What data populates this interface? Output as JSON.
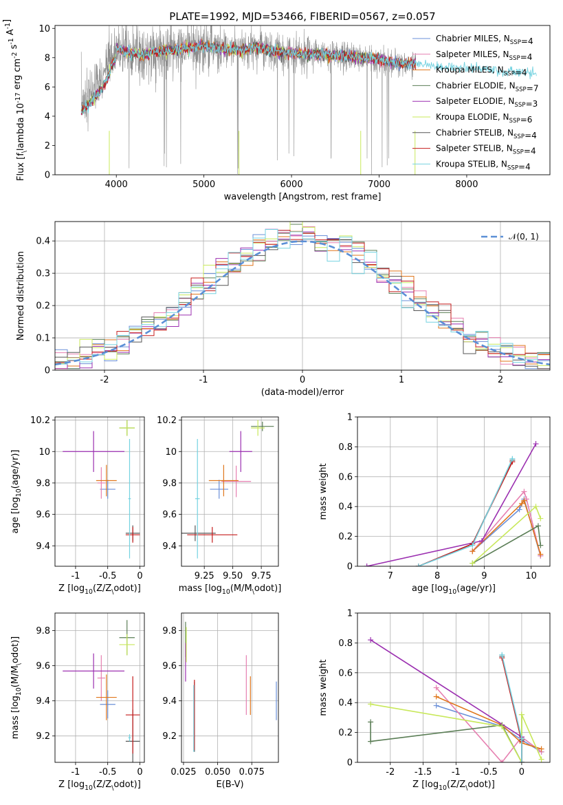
{
  "figure": {
    "title": "PLATE=1992, MJD=53466, FIBERID=0567, z=0.057",
    "colors": {
      "Chabrier MILES": "#6a8fd8",
      "Salpeter MILES": "#e67fb0",
      "Kroupa MILES": "#e0761b",
      "Chabrier ELODIE": "#5a7d55",
      "Salpeter ELODIE": "#9b2fb0",
      "Kroupa ELODIE": "#c8e85a",
      "Chabrier STELIB": "#555555",
      "Salpeter STELIB": "#c51b1b",
      "Kroupa STELIB": "#74d2e0",
      "data": "#8c8c8c",
      "gauss": "#5b8fd6"
    }
  },
  "chart_data": [
    {
      "id": "spectrum",
      "type": "line",
      "xlabel": "wavelength [Angstrom, rest frame]",
      "ylabel": "Flux [f$_\\lambda 10^{-17}$ erg cm$^{-2}$ s$^{-1}$ A$^{-1}$]",
      "xlim": [
        3300,
        8950
      ],
      "ylim": [
        0,
        10.2
      ],
      "xticks": [
        4000,
        5000,
        6000,
        7000,
        8000
      ],
      "yticks": [
        0,
        2,
        4,
        6,
        8,
        10
      ],
      "grid": false,
      "legend_position": "upper right",
      "legend": [
        "Chabrier MILES, N$_{SSP}$=4",
        "Salpeter MILES, N$_{SSP}$=4",
        "Kroupa MILES, N$_{SSP}$=4",
        "Chabrier ELODIE, N$_{SSP}$=7",
        "Salpeter ELODIE, N$_{SSP}$=3",
        "Kroupa ELODIE, N$_{SSP}$=6",
        "Chabrier STELIB, N$_{SSP}$=4",
        "Salpeter STELIB, N$_{SSP}$=4",
        "Kroupa STELIB, N$_{SSP}$=4"
      ],
      "continuum": {
        "x": [
          3600,
          3650,
          3700,
          3750,
          3800,
          3850,
          3900,
          3950,
          4000,
          4100,
          4200,
          4300,
          4400,
          4600,
          4800,
          5000,
          5200,
          5400,
          5600,
          5800,
          6000,
          6200,
          6400,
          6600,
          6800,
          7000,
          7200,
          7400,
          7600,
          7800,
          8000,
          8200,
          8400,
          8600,
          8800
        ],
        "y": [
          4.9,
          5.2,
          5.5,
          5.9,
          6.2,
          6.6,
          7.2,
          8.1,
          8.6,
          8.4,
          8.3,
          8.2,
          8.4,
          8.5,
          8.6,
          8.8,
          8.6,
          8.5,
          8.7,
          8.4,
          8.3,
          8.2,
          8.2,
          8.1,
          8.0,
          7.9,
          7.6,
          7.6,
          7.5,
          7.4,
          7.3,
          7.2,
          7.1,
          7.0,
          6.9
        ]
      }
    },
    {
      "id": "residuals",
      "type": "line",
      "xlabel": "(data-model)/error",
      "ylabel": "Normed distribution",
      "xlim": [
        -2.5,
        2.5
      ],
      "ylim": [
        0,
        0.46
      ],
      "xticks": [
        -2,
        -1,
        0,
        1,
        2
      ],
      "yticks": [
        0.0,
        0.1,
        0.2,
        0.3,
        0.4
      ],
      "grid": true,
      "legend_position": "upper right",
      "legend": [
        "$\\mathcal{N}(0,1)$"
      ]
    },
    {
      "id": "age_vs_Z",
      "type": "scatter",
      "xlabel": "Z [log$_{10}(Z/Z_\\odot)$]",
      "ylabel": "age  [log$_{10}(age/yr)$]",
      "xlim": [
        -1.32,
        0.07
      ],
      "ylim": [
        9.27,
        10.22
      ],
      "xticks": [
        -1.0,
        -0.5,
        0.0
      ],
      "yticks": [
        9.4,
        9.6,
        9.8,
        10.0,
        10.2
      ],
      "grid": true,
      "points": [
        {
          "model": "Chabrier MILES",
          "x": -0.5,
          "xerr": 0.12,
          "y": 9.76,
          "yerr": 0.06
        },
        {
          "model": "Salpeter MILES",
          "x": -0.6,
          "xerr": 0.06,
          "y": 9.8,
          "yerr": 0.1
        },
        {
          "model": "Kroupa MILES",
          "x": -0.52,
          "xerr": 0.16,
          "y": 9.815,
          "yerr": 0.1
        },
        {
          "model": "Chabrier ELODIE",
          "x": -0.2,
          "xerr": 0.12,
          "y": 10.15,
          "yerr": 0.05
        },
        {
          "model": "Salpeter ELODIE",
          "x": -0.72,
          "xerr": 0.48,
          "y": 10.0,
          "yerr": 0.13
        },
        {
          "model": "Kroupa ELODIE",
          "x": -0.2,
          "xerr": 0.12,
          "y": 10.15,
          "yerr": 0.05
        },
        {
          "model": "Chabrier STELIB",
          "x": -0.11,
          "xerr": 0.11,
          "y": 9.48,
          "yerr": 0.05
        },
        {
          "model": "Salpeter STELIB",
          "x": -0.11,
          "xerr": 0.11,
          "y": 9.47,
          "yerr": 0.05
        },
        {
          "model": "Kroupa STELIB",
          "x": -0.16,
          "xerr": 0.02,
          "y": 9.7,
          "yerr": 0.38
        }
      ]
    },
    {
      "id": "age_vs_mass",
      "type": "scatter",
      "xlabel": "mass [log$_{10}(M/M_\\odot)$]",
      "ylabel": "",
      "xlim": [
        9.05,
        9.9
      ],
      "ylim": [
        9.27,
        10.22
      ],
      "xticks": [
        9.25,
        9.5,
        9.75
      ],
      "xticklabels": [
        "9.25",
        "9.50",
        "9.75"
      ],
      "yticks": [
        9.4,
        9.6,
        9.8,
        10.0,
        10.2
      ],
      "grid": true,
      "points": [
        {
          "model": "Chabrier MILES",
          "x": 9.38,
          "xerr": 0.08,
          "y": 9.76,
          "yerr": 0.06
        },
        {
          "model": "Salpeter MILES",
          "x": 9.53,
          "xerr": 0.13,
          "y": 9.81,
          "yerr": 0.1
        },
        {
          "model": "Kroupa MILES",
          "x": 9.42,
          "xerr": 0.13,
          "y": 9.815,
          "yerr": 0.1
        },
        {
          "model": "Chabrier ELODIE",
          "x": 9.76,
          "xerr": 0.1,
          "y": 10.16,
          "yerr": 0.03
        },
        {
          "model": "Salpeter ELODIE",
          "x": 9.57,
          "xerr": 0.1,
          "y": 10.0,
          "yerr": 0.13
        },
        {
          "model": "Kroupa ELODIE",
          "x": 9.72,
          "xerr": 0.06,
          "y": 10.15,
          "yerr": 0.05
        },
        {
          "model": "Chabrier STELIB",
          "x": 9.17,
          "xerr": 0.18,
          "y": 9.48,
          "yerr": 0.05
        },
        {
          "model": "Salpeter STELIB",
          "x": 9.32,
          "xerr": 0.22,
          "y": 9.47,
          "yerr": 0.05
        },
        {
          "model": "Kroupa STELIB",
          "x": 9.19,
          "xerr": 0.02,
          "y": 9.7,
          "yerr": 0.38
        }
      ]
    },
    {
      "id": "weight_vs_age",
      "type": "line",
      "xlabel": "age  [log$_{10}(age/yr)$]",
      "ylabel": "mass weight",
      "xlim": [
        6.3,
        10.4
      ],
      "ylim": [
        0,
        1
      ],
      "xticks": [
        7,
        8,
        9,
        10
      ],
      "yticks": [
        0.0,
        0.2,
        0.4,
        0.6,
        0.8,
        1.0
      ],
      "grid": true,
      "series": [
        {
          "model": "Chabrier MILES",
          "x": [
            8.75,
            9.75,
            9.85,
            10.2
          ],
          "y": [
            0.1,
            0.38,
            0.45,
            0.07
          ]
        },
        {
          "model": "Salpeter MILES",
          "x": [
            8.75,
            9.85,
            9.9,
            10.2
          ],
          "y": [
            0.1,
            0.5,
            0.45,
            0.07
          ]
        },
        {
          "model": "Kroupa MILES",
          "x": [
            8.75,
            9.8,
            9.85,
            10.2
          ],
          "y": [
            0.1,
            0.42,
            0.44,
            0.08
          ]
        },
        {
          "model": "Chabrier ELODIE",
          "x": [
            8.75,
            10.15,
            10.2
          ],
          "y": [
            0.02,
            0.27,
            0.14
          ]
        },
        {
          "model": "Salpeter ELODIE",
          "x": [
            6.5,
            8.95,
            10.1
          ],
          "y": [
            0.0,
            0.17,
            0.82
          ]
        },
        {
          "model": "Kroupa ELODIE",
          "x": [
            8.75,
            10.1,
            10.2
          ],
          "y": [
            0.02,
            0.4,
            0.32
          ]
        },
        {
          "model": "Chabrier STELIB",
          "x": [
            7.6,
            8.75,
            9.6
          ],
          "y": [
            0.0,
            0.15,
            0.71
          ]
        },
        {
          "model": "Salpeter STELIB",
          "x": [
            7.6,
            8.75,
            9.6
          ],
          "y": [
            0.0,
            0.15,
            0.7
          ]
        },
        {
          "model": "Kroupa STELIB",
          "x": [
            7.6,
            8.75,
            9.6
          ],
          "y": [
            0.0,
            0.14,
            0.72
          ]
        }
      ]
    },
    {
      "id": "mass_vs_Z",
      "type": "scatter",
      "xlabel": "Z [log$_{10}(Z/Z_\\odot)$]",
      "ylabel": "mass [log$_{10}(M/M_\\odot)$]",
      "xlim": [
        -1.32,
        0.07
      ],
      "ylim": [
        9.05,
        9.9
      ],
      "xticks": [
        -1.0,
        -0.5,
        0.0
      ],
      "yticks": [
        9.2,
        9.4,
        9.6,
        9.8
      ],
      "grid": true,
      "points": [
        {
          "model": "Chabrier MILES",
          "x": -0.5,
          "xerr": 0.12,
          "y": 9.38,
          "yerr": 0.08
        },
        {
          "model": "Salpeter MILES",
          "x": -0.6,
          "xerr": 0.06,
          "y": 9.53,
          "yerr": 0.13
        },
        {
          "model": "Kroupa MILES",
          "x": -0.52,
          "xerr": 0.16,
          "y": 9.42,
          "yerr": 0.13
        },
        {
          "model": "Chabrier ELODIE",
          "x": -0.2,
          "xerr": 0.12,
          "y": 9.76,
          "yerr": 0.1
        },
        {
          "model": "Salpeter ELODIE",
          "x": -0.72,
          "xerr": 0.48,
          "y": 9.57,
          "yerr": 0.1
        },
        {
          "model": "Kroupa ELODIE",
          "x": -0.2,
          "xerr": 0.12,
          "y": 9.72,
          "yerr": 0.06
        },
        {
          "model": "Chabrier STELIB",
          "x": -0.11,
          "xerr": 0.11,
          "y": 9.17,
          "yerr": 0.18
        },
        {
          "model": "Salpeter STELIB",
          "x": -0.11,
          "xerr": 0.11,
          "y": 9.32,
          "yerr": 0.22
        },
        {
          "model": "Kroupa STELIB",
          "x": -0.16,
          "xerr": 0.02,
          "y": 9.19,
          "yerr": 0.02
        }
      ]
    },
    {
      "id": "mass_vs_EBV",
      "type": "scatter",
      "xlabel": "E(B-V)",
      "ylabel": "",
      "xlim": [
        0.0235,
        0.0945
      ],
      "ylim": [
        9.05,
        9.9
      ],
      "xticks": [
        0.025,
        0.05,
        0.075
      ],
      "xticklabels": [
        "0.025",
        "0.050",
        "0.075"
      ],
      "yticks": [
        9.2,
        9.4,
        9.6,
        9.8
      ],
      "grid": true,
      "points": [
        {
          "model": "Chabrier MILES",
          "x": 0.093,
          "xerr": 0,
          "y": 9.4,
          "yerr": 0.11
        },
        {
          "model": "Salpeter MILES",
          "x": 0.071,
          "xerr": 0,
          "y": 9.49,
          "yerr": 0.17
        },
        {
          "model": "Kroupa MILES",
          "x": 0.074,
          "xerr": 0,
          "y": 9.43,
          "yerr": 0.11
        },
        {
          "model": "Chabrier ELODIE",
          "x": 0.0265,
          "xerr": 0,
          "y": 9.75,
          "yerr": 0.1
        },
        {
          "model": "Salpeter ELODIE",
          "x": 0.0265,
          "xerr": 0,
          "y": 9.62,
          "yerr": 0.11
        },
        {
          "model": "Kroupa ELODIE",
          "x": 0.027,
          "xerr": 0,
          "y": 9.72,
          "yerr": 0.1
        },
        {
          "model": "Chabrier STELIB",
          "x": 0.033,
          "xerr": 0,
          "y": 9.31,
          "yerr": 0.2
        },
        {
          "model": "Salpeter STELIB",
          "x": 0.033,
          "xerr": 0,
          "y": 9.32,
          "yerr": 0.2
        },
        {
          "model": "Kroupa STELIB",
          "x": 0.0325,
          "xerr": 0,
          "y": 9.3,
          "yerr": 0.19
        }
      ]
    },
    {
      "id": "weight_vs_Z",
      "type": "line",
      "xlabel": "Z [log$_{10}(Z/Z_\\odot)$]",
      "ylabel": "mass weight",
      "xlim": [
        -2.5,
        0.43
      ],
      "ylim": [
        0,
        1
      ],
      "xticks": [
        -2.0,
        -1.5,
        -1.0,
        -0.5,
        0.0
      ],
      "yticks": [
        0.0,
        0.2,
        0.4,
        0.6,
        0.8,
        1.0
      ],
      "grid": true,
      "series": [
        {
          "model": "Chabrier MILES",
          "x": [
            -1.3,
            -0.3,
            0.0,
            0.3
          ],
          "y": [
            0.38,
            0.24,
            0.15,
            0.07
          ]
        },
        {
          "model": "Salpeter MILES",
          "x": [
            -1.3,
            -0.3,
            0.0,
            0.3
          ],
          "y": [
            0.5,
            0.0,
            0.17,
            0.07
          ]
        },
        {
          "model": "Kroupa MILES",
          "x": [
            -1.3,
            -0.3,
            0.0,
            0.3
          ],
          "y": [
            0.44,
            0.25,
            0.13,
            0.09
          ]
        },
        {
          "model": "Chabrier ELODIE",
          "x": [
            -2.3,
            -2.3,
            -0.3,
            0.0,
            0.0
          ],
          "y": [
            0.27,
            0.14,
            0.25,
            0.0,
            0.32
          ]
        },
        {
          "model": "Salpeter ELODIE",
          "x": [
            -2.3,
            0.0,
            0.0
          ],
          "y": [
            0.82,
            0.17,
            0.0
          ]
        },
        {
          "model": "Kroupa ELODIE",
          "x": [
            -2.3,
            -0.3,
            0.0,
            0.0,
            0.3
          ],
          "y": [
            0.39,
            0.24,
            0.0,
            0.32,
            0.02
          ]
        },
        {
          "model": "Chabrier STELIB",
          "x": [
            -0.3,
            0.0,
            0.0
          ],
          "y": [
            0.71,
            0.15,
            0.0
          ]
        },
        {
          "model": "Salpeter STELIB",
          "x": [
            -0.3,
            0.0,
            0.0
          ],
          "y": [
            0.7,
            0.14,
            0.0
          ]
        },
        {
          "model": "Kroupa STELIB",
          "x": [
            -0.3,
            0.0,
            0.0
          ],
          "y": [
            0.72,
            0.16,
            0.0
          ]
        }
      ]
    }
  ]
}
